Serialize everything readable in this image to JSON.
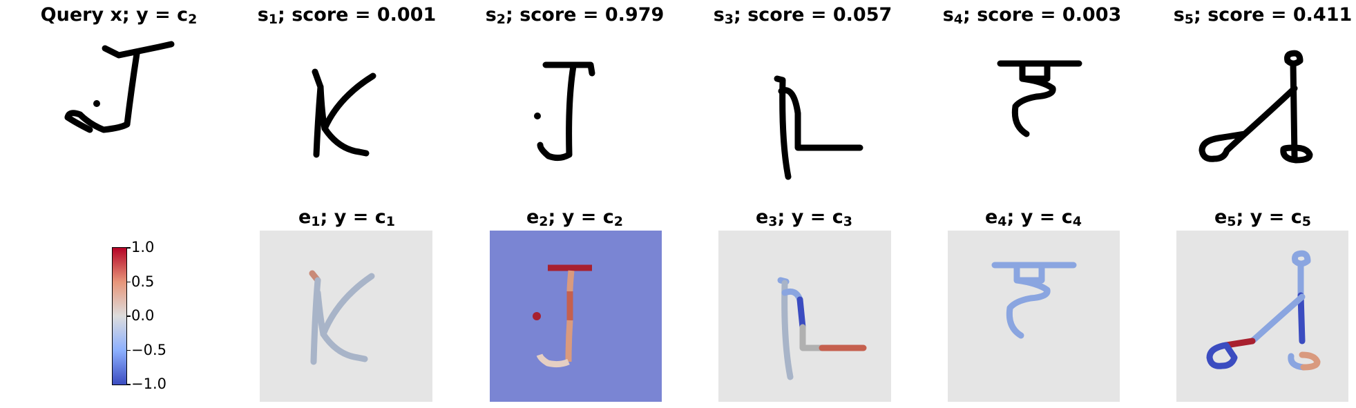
{
  "top_row": [
    {
      "id": "query",
      "label": "Query x",
      "sep": "; ",
      "rhs_pre": "y = c",
      "rhs_sub": "2",
      "score": null
    },
    {
      "id": "s1",
      "sym": "s",
      "sub": "1",
      "sep": "; score = ",
      "score": "0.001"
    },
    {
      "id": "s2",
      "sym": "s",
      "sub": "2",
      "sep": "; score = ",
      "score": "0.979"
    },
    {
      "id": "s3",
      "sym": "s",
      "sub": "3",
      "sep": "; score = ",
      "score": "0.057"
    },
    {
      "id": "s4",
      "sym": "s",
      "sub": "4",
      "sep": "; score = ",
      "score": "0.003"
    },
    {
      "id": "s5",
      "sym": "s",
      "sub": "5",
      "sep": "; score = ",
      "score": "0.411"
    }
  ],
  "bottom_row": [
    {
      "id": "e1",
      "sym": "e",
      "sub": "1",
      "sep": "; ",
      "rhs_pre": "y = c",
      "rhs_sub": "1"
    },
    {
      "id": "e2",
      "sym": "e",
      "sub": "2",
      "sep": "; ",
      "rhs_pre": "y = c",
      "rhs_sub": "2"
    },
    {
      "id": "e3",
      "sym": "e",
      "sub": "3",
      "sep": "; ",
      "rhs_pre": "y = c",
      "rhs_sub": "3"
    },
    {
      "id": "e4",
      "sym": "e",
      "sub": "4",
      "sep": "; ",
      "rhs_pre": "y = c",
      "rhs_sub": "4"
    },
    {
      "id": "e5",
      "sym": "e",
      "sub": "5",
      "sep": "; ",
      "rhs_pre": "y = c",
      "rhs_sub": "5"
    }
  ],
  "colorbar": {
    "ticks": [
      "1.0",
      "0.5",
      "0.0",
      "−0.5",
      "−1.0"
    ],
    "colormap": "coolwarm",
    "colors": {
      "top": "#b40426",
      "upper": "#e7967a",
      "mid": "#dddddd",
      "lower": "#8db0fe",
      "bottom": "#3b4cc0"
    }
  },
  "colors": {
    "stroke": "#000000",
    "neutral_bg": "#e5e5e5",
    "blue_bg": "#7a85d3",
    "neutral_stroke": "#a8b4c8",
    "blue_stroke": "#8aa5e0",
    "deep_blue": "#3b4cc0",
    "deep_red": "#a8202f",
    "light_red": "#d99a7e",
    "salmon": "#c98a78",
    "mid_red": "#c5604e"
  }
}
